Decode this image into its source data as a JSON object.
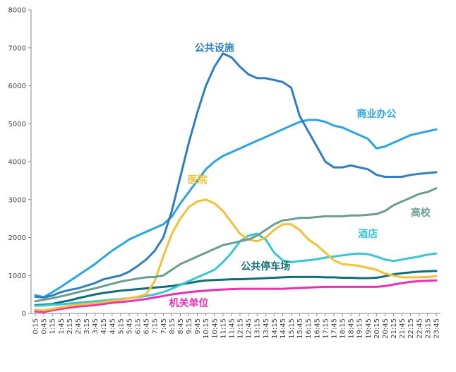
{
  "chart_data": {
    "type": "line",
    "title": "",
    "xlabel": "",
    "ylabel": "",
    "ylim": [
      0,
      8000
    ],
    "yticks": [
      0,
      1000,
      2000,
      3000,
      4000,
      5000,
      6000,
      7000,
      8000
    ],
    "grid": false,
    "legend": "none",
    "xtick_labels": [
      "0:15",
      "0:45",
      "1:15",
      "1:45",
      "2:15",
      "2:45",
      "3:15",
      "3:45",
      "4:15",
      "4:45",
      "5:15",
      "5:45",
      "6:15",
      "6:45",
      "7:15",
      "7:45",
      "8:15",
      "8:45",
      "9:15",
      "9:45",
      "10:15",
      "10:45",
      "11:15",
      "11:45",
      "12:15",
      "12:45",
      "13:15",
      "13:45",
      "14:15",
      "14:45",
      "15:15",
      "15:45",
      "16:15",
      "16:45",
      "17:15",
      "17:45",
      "18:15",
      "18:45",
      "19:15",
      "19:45",
      "20:15",
      "20:45",
      "21:15",
      "21:45",
      "22:15",
      "22:45",
      "23:15",
      "23:45"
    ],
    "series": [
      {
        "name": "公共设施",
        "color": "#2e7fc1",
        "values": [
          440,
          420,
          470,
          560,
          620,
          660,
          730,
          800,
          900,
          950,
          1000,
          1100,
          1250,
          1420,
          1650,
          2000,
          2700,
          3600,
          4500,
          5300,
          6000,
          6500,
          6850,
          6750,
          6500,
          6300,
          6200,
          6200,
          6150,
          6100,
          5950,
          5200,
          4800,
          4400,
          4000,
          3850,
          3850,
          3900,
          3850,
          3800,
          3650,
          3600,
          3600,
          3600,
          3650,
          3680,
          3700,
          3720
        ]
      },
      {
        "name": "商业办公",
        "color": "#2aa5de",
        "values": [
          480,
          430,
          560,
          700,
          850,
          1000,
          1150,
          1300,
          1480,
          1650,
          1800,
          1950,
          2050,
          2150,
          2250,
          2350,
          2550,
          2900,
          3200,
          3500,
          3800,
          4000,
          4150,
          4250,
          4350,
          4450,
          4550,
          4650,
          4750,
          4850,
          4950,
          5050,
          5100,
          5100,
          5050,
          4950,
          4900,
          4800,
          4700,
          4600,
          4350,
          4400,
          4500,
          4600,
          4700,
          4750,
          4800,
          4850
        ]
      },
      {
        "name": "高校",
        "color": "#6a9e92",
        "values": [
          320,
          360,
          400,
          450,
          500,
          560,
          610,
          660,
          720,
          780,
          840,
          880,
          920,
          950,
          960,
          1000,
          1150,
          1300,
          1400,
          1500,
          1600,
          1700,
          1800,
          1850,
          1900,
          1950,
          2050,
          2200,
          2350,
          2450,
          2480,
          2520,
          2520,
          2540,
          2560,
          2560,
          2560,
          2580,
          2580,
          2600,
          2620,
          2700,
          2850,
          2950,
          3050,
          3150,
          3200,
          3300
        ]
      },
      {
        "name": "医院",
        "color": "#f5c035",
        "values": [
          100,
          80,
          120,
          160,
          200,
          230,
          250,
          270,
          300,
          330,
          360,
          400,
          440,
          500,
          850,
          1500,
          2100,
          2500,
          2800,
          2950,
          3000,
          2900,
          2700,
          2400,
          2100,
          1950,
          1900,
          2000,
          2200,
          2350,
          2350,
          2200,
          1950,
          1800,
          1600,
          1400,
          1300,
          1280,
          1250,
          1200,
          1150,
          1050,
          1000,
          950,
          950,
          950,
          960,
          980
        ]
      },
      {
        "name": "酒店",
        "color": "#38c5d5",
        "values": [
          200,
          210,
          230,
          240,
          260,
          280,
          300,
          320,
          340,
          360,
          380,
          400,
          430,
          460,
          500,
          560,
          650,
          750,
          850,
          950,
          1050,
          1150,
          1350,
          1600,
          1900,
          2050,
          2100,
          1950,
          1600,
          1400,
          1350,
          1380,
          1400,
          1430,
          1470,
          1500,
          1530,
          1560,
          1580,
          1560,
          1500,
          1420,
          1380,
          1420,
          1460,
          1500,
          1550,
          1580
        ]
      },
      {
        "name": "公共停车场",
        "color": "#0f6e78",
        "values": [
          220,
          230,
          250,
          300,
          340,
          400,
          450,
          500,
          540,
          570,
          600,
          620,
          640,
          660,
          680,
          700,
          720,
          760,
          800,
          840,
          870,
          880,
          890,
          900,
          900,
          910,
          920,
          930,
          940,
          950,
          960,
          960,
          960,
          960,
          950,
          950,
          940,
          940,
          930,
          930,
          940,
          980,
          1030,
          1060,
          1080,
          1100,
          1110,
          1120
        ]
      },
      {
        "name": "机关单位",
        "color": "#ec2fb2",
        "values": [
          50,
          40,
          80,
          120,
          150,
          180,
          200,
          220,
          250,
          280,
          300,
          320,
          350,
          380,
          420,
          460,
          500,
          530,
          560,
          580,
          600,
          620,
          630,
          640,
          650,
          650,
          650,
          650,
          650,
          650,
          660,
          670,
          680,
          690,
          700,
          700,
          700,
          700,
          700,
          700,
          700,
          720,
          760,
          800,
          830,
          850,
          860,
          870
        ]
      }
    ]
  }
}
